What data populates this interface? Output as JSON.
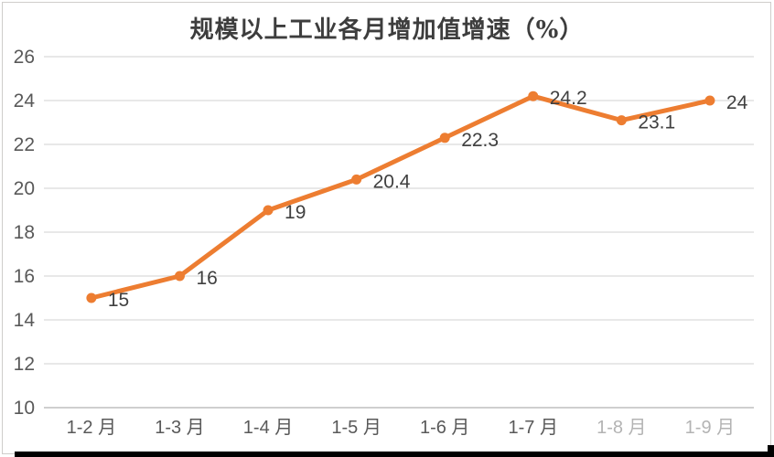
{
  "chart_data": {
    "type": "line",
    "title": "规模以上工业各月增加值增速（%）",
    "categories": [
      "1-2 月",
      "1-3 月",
      "1-4 月",
      "1-5 月",
      "1-6 月",
      "1-7 月",
      "1-8 月",
      "1-9 月"
    ],
    "values": [
      15,
      16,
      19,
      20.4,
      22.3,
      24.2,
      23.1,
      24
    ],
    "point_labels": [
      "15",
      "16",
      "19",
      "20.4",
      "22.3",
      "24.2",
      "23.1",
      "24"
    ],
    "xlabel": "",
    "ylabel": "",
    "ylim": [
      10,
      26
    ],
    "ystep": 2,
    "ytick_labels": [
      "10",
      "12",
      "14",
      "16",
      "18",
      "20",
      "22",
      "24",
      "26"
    ],
    "grid": "horizontal",
    "legend": "none",
    "marker": "circle",
    "faded_category_indices": [
      6,
      7
    ]
  },
  "colors": {
    "line": "#ED7D31",
    "marker": "#ED7D31",
    "gridline": "#D9D9D9",
    "axis_line": "#BFBFBF",
    "tick_text": "#595959",
    "faded_tick_text": "#595959",
    "data_label_text": "#404040",
    "title_text": "#3d3d3d",
    "frame_border": "#cfcdcb",
    "bottom_bar": "#000000"
  }
}
